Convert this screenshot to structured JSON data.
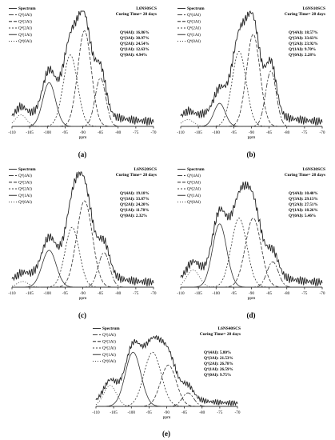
{
  "chart_data": [
    {
      "type": "line",
      "panel_label": "(a)",
      "sample": "L6NS0SCS",
      "curing": "Curing Time= 28 days",
      "xlabel": "ppm",
      "xlim": [
        -110,
        -70
      ],
      "x_ticks": [
        "-110",
        "-105",
        "-100",
        "-95",
        "-90",
        "-85",
        "-80",
        "-75",
        "-70"
      ],
      "legend": [
        "Spectrum",
        "Q⁴(4Al)",
        "Q⁴(3Al)",
        "Q⁴(2Al)",
        "Q⁴(1Al)",
        "Q⁴(0Al)"
      ],
      "annotations": [
        "Q⁴(4Al): 16.86%",
        "Q⁴(3Al): 30.97%",
        "Q⁴(2Al): 24.54%",
        "Q⁴(1Al): 12.63%",
        "Q⁴(0Al): 4.94%"
      ],
      "peaks": [
        {
          "name": "Q⁴(4Al)",
          "center": -85,
          "height": 0.42,
          "width": 1.5
        },
        {
          "name": "Q⁴(3Al)",
          "center": -89.5,
          "height": 0.83,
          "width": 1.9
        },
        {
          "name": "Q⁴(2Al)",
          "center": -93.5,
          "height": 0.62,
          "width": 2.0
        },
        {
          "name": "Q⁴(1Al)",
          "center": -99.5,
          "height": 0.38,
          "width": 1.8
        },
        {
          "name": "Q⁴(0Al)",
          "center": -107.5,
          "height": 0.1,
          "width": 1.6
        }
      ]
    },
    {
      "type": "line",
      "panel_label": "(b)",
      "sample": "L6NS10SCS",
      "curing": "Curing Time= 28 days",
      "xlabel": "ppm",
      "xlim": [
        -110,
        -70
      ],
      "x_ticks": [
        "-110",
        "-105",
        "-100",
        "-95",
        "-90",
        "-85",
        "-80",
        "-75",
        "-70"
      ],
      "legend": [
        "Spectrum",
        "Q⁴(4Al)",
        "Q⁴(3Al)",
        "Q⁴(2Al)",
        "Q⁴(1Al)",
        "Q⁴(0Al)"
      ],
      "annotations": [
        "Q⁴(4Al): 18.57%",
        "Q⁴(3Al): 33.63%",
        "Q⁴(2Al): 23.92%",
        "Q⁴(1Al): 9.70%",
        "Q⁴(0Al): 2.28%"
      ],
      "peaks": [
        {
          "name": "Q⁴(4Al)",
          "center": -84.5,
          "height": 0.48,
          "width": 1.5
        },
        {
          "name": "Q⁴(3Al)",
          "center": -89.5,
          "height": 0.8,
          "width": 1.9
        },
        {
          "name": "Q⁴(2Al)",
          "center": -93.5,
          "height": 0.65,
          "width": 2.0
        },
        {
          "name": "Q⁴(1Al)",
          "center": -99,
          "height": 0.2,
          "width": 1.6
        },
        {
          "name": "Q⁴(0Al)",
          "center": -108,
          "height": 0.06,
          "width": 1.6
        }
      ]
    },
    {
      "type": "line",
      "panel_label": "(c)",
      "sample": "L6NS20SCS",
      "curing": "Curing Time= 28 days",
      "xlabel": "ppm",
      "xlim": [
        -110,
        -70
      ],
      "x_ticks": [
        "-110",
        "-105",
        "-100",
        "-95",
        "-90",
        "-85",
        "-80",
        "-75",
        "-70"
      ],
      "legend": [
        "Spectrum",
        "Q⁴(4Al)",
        "Q⁴(3Al)",
        "Q⁴(2Al)",
        "Q⁴(1Al)",
        "Q⁴(0Al)"
      ],
      "annotations": [
        "Q⁴(4Al): 19.18%",
        "Q⁴(3Al): 33.87%",
        "Q⁴(2Al): 24.20%",
        "Q⁴(1Al): 11.78%",
        "Q⁴(0Al): 2.32%"
      ],
      "peaks": [
        {
          "name": "Q⁴(4Al)",
          "center": -84,
          "height": 0.3,
          "width": 1.6
        },
        {
          "name": "Q⁴(3Al)",
          "center": -89.5,
          "height": 0.75,
          "width": 2.2
        },
        {
          "name": "Q⁴(2Al)",
          "center": -93,
          "height": 0.52,
          "width": 2.0
        },
        {
          "name": "Q⁴(1Al)",
          "center": -99.5,
          "height": 0.32,
          "width": 2.0
        },
        {
          "name": "Q⁴(0Al)",
          "center": -107,
          "height": 0.05,
          "width": 1.6
        }
      ]
    },
    {
      "type": "line",
      "panel_label": "(d)",
      "sample": "L6NS30SCS",
      "curing": "Curing Time= 28 days",
      "xlabel": "ppm",
      "xlim": [
        -110,
        -70
      ],
      "x_ticks": [
        "-110",
        "-105",
        "-100",
        "-95",
        "-90",
        "-85",
        "-80",
        "-75",
        "-70"
      ],
      "legend": [
        "Spectrum",
        "Q⁴(4Al)",
        "Q⁴(3Al)",
        "Q⁴(2Al)",
        "Q⁴(1Al)",
        "Q⁴(0Al)"
      ],
      "annotations": [
        "Q⁴(4Al): 10.40%",
        "Q⁴(3Al): 29.13%",
        "Q⁴(2Al): 27.51%",
        "Q⁴(1Al): 18.26%",
        "Q⁴(0Al): 5.46%"
      ],
      "peaks": [
        {
          "name": "Q⁴(4Al)",
          "center": -84,
          "height": 0.22,
          "width": 1.6
        },
        {
          "name": "Q⁴(3Al)",
          "center": -89.5,
          "height": 0.6,
          "width": 2.2
        },
        {
          "name": "Q⁴(2Al)",
          "center": -93.5,
          "height": 0.6,
          "width": 2.2
        },
        {
          "name": "Q⁴(1Al)",
          "center": -99,
          "height": 0.55,
          "width": 2.0
        },
        {
          "name": "Q⁴(0Al)",
          "center": -106.5,
          "height": 0.15,
          "width": 1.8
        }
      ]
    },
    {
      "type": "line",
      "panel_label": "(e)",
      "sample": "L6NS40SCS",
      "curing": "Curing Time= 28 days",
      "xlabel": "ppm",
      "xlim": [
        -110,
        -70
      ],
      "x_ticks": [
        "-110",
        "-105",
        "-100",
        "-95",
        "-90",
        "-85",
        "-80",
        "-75",
        "-70"
      ],
      "legend": [
        "Spectrum",
        "Q⁴(4Al)",
        "Q⁴(3Al)",
        "Q⁴(2Al)",
        "Q⁴(1Al)",
        "Q⁴(0Al)"
      ],
      "annotations": [
        "Q⁴(4Al): 5.80%",
        "Q⁴(3Al): 21.53%",
        "Q⁴(2Al): 26.78%",
        "Q⁴(1Al): 26.59%",
        "Q⁴(0Al): 9.75%"
      ],
      "peaks": [
        {
          "name": "Q⁴(4Al)",
          "center": -84,
          "height": 0.18,
          "width": 1.6
        },
        {
          "name": "Q⁴(3Al)",
          "center": -89.5,
          "height": 0.55,
          "width": 2.2
        },
        {
          "name": "Q⁴(2Al)",
          "center": -94,
          "height": 0.72,
          "width": 2.4
        },
        {
          "name": "Q⁴(1Al)",
          "center": -99.5,
          "height": 0.72,
          "width": 2.2
        },
        {
          "name": "Q⁴(0Al)",
          "center": -106,
          "height": 0.28,
          "width": 1.8
        }
      ]
    }
  ]
}
